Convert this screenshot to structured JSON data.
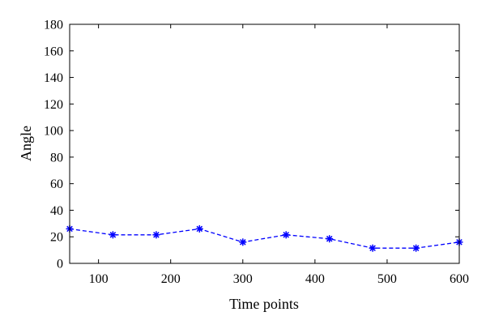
{
  "chart_data": {
    "type": "line",
    "title": "",
    "xlabel": "Time points",
    "ylabel": "Angle",
    "xlim": [
      60,
      600
    ],
    "ylim": [
      0,
      180
    ],
    "x_ticks": [
      100,
      200,
      300,
      400,
      500,
      600
    ],
    "y_ticks": [
      0,
      20,
      40,
      60,
      80,
      100,
      120,
      140,
      160,
      180
    ],
    "grid": false,
    "legend": "none",
    "series": [
      {
        "line_style": "dashed",
        "marker": "star",
        "color": "#0000ff",
        "x": [
          60,
          120,
          180,
          240,
          300,
          360,
          420,
          480,
          540,
          600
        ],
        "y": [
          26,
          21.5,
          21.5,
          26,
          16,
          21.5,
          18.5,
          11.5,
          11.5,
          16
        ]
      }
    ]
  }
}
